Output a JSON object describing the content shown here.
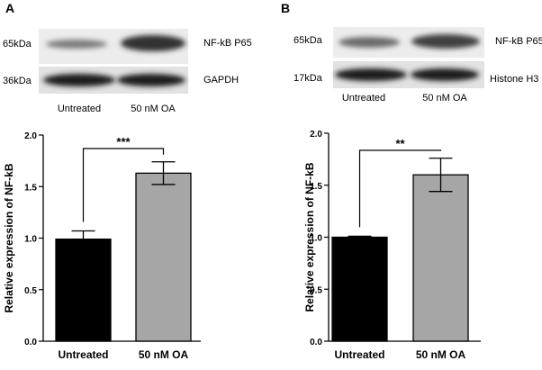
{
  "panels": [
    {
      "letter": "A",
      "blot": {
        "rows": [
          {
            "marker": "65kDa",
            "protein": "NF-kB P65"
          },
          {
            "marker": "36kDa",
            "protein": "GAPDH"
          }
        ],
        "lanes": [
          "Untreated",
          "50 nM OA"
        ]
      }
    },
    {
      "letter": "B",
      "blot": {
        "rows": [
          {
            "marker": "65kDa",
            "protein": "NF-kB P65"
          },
          {
            "marker": "17kDa",
            "protein": "Histone H3"
          }
        ],
        "lanes": [
          "Untreated",
          "50 nM OA"
        ]
      }
    }
  ],
  "chart_data": [
    {
      "type": "bar",
      "categories": [
        "Untreated",
        "50 nM OA"
      ],
      "values": [
        0.99,
        1.63
      ],
      "errors": [
        0.08,
        0.11
      ],
      "ylabel": "Relative expression of NF-kB",
      "xlabel": "",
      "ylim": [
        0,
        2.0
      ],
      "yticks": [
        "0.0",
        "0.5",
        "1.0",
        "1.5",
        "2.0"
      ],
      "significance": "***",
      "bar_colors": [
        "#000000",
        "#a6a6a6"
      ]
    },
    {
      "type": "bar",
      "categories": [
        "Untreated",
        "50 nM OA"
      ],
      "values": [
        1.0,
        1.6
      ],
      "errors": [
        0.01,
        0.16
      ],
      "ylabel": "Relative expression of NF-kB",
      "xlabel": "",
      "ylim": [
        0,
        2.0
      ],
      "yticks": [
        "0.0",
        "0.5",
        "1.0",
        "1.5",
        "2.0"
      ],
      "significance": "**",
      "bar_colors": [
        "#000000",
        "#a6a6a6"
      ]
    }
  ]
}
